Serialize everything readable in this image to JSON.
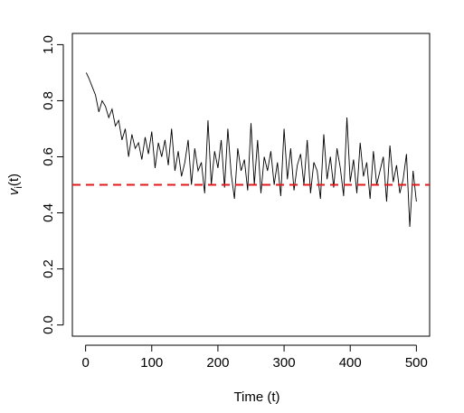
{
  "chart_data": {
    "type": "line",
    "xlabel": "Time (t)",
    "ylabel_main": "v",
    "ylabel_sub": "i",
    "ylabel_suffix": "(t)",
    "xlim": [
      -20,
      520
    ],
    "ylim": [
      -0.04,
      1.04
    ],
    "xticks": [
      0,
      100,
      200,
      300,
      400,
      500
    ],
    "xtick_labels": [
      "0",
      "100",
      "200",
      "300",
      "400",
      "500"
    ],
    "yticks": [
      0.0,
      0.2,
      0.4,
      0.6,
      0.8,
      1.0
    ],
    "ytick_labels": [
      "0.0",
      "0.2",
      "0.4",
      "0.6",
      "0.8",
      "1.0"
    ],
    "grid": false,
    "series": [
      {
        "color": "#000000",
        "x": [
          1,
          5,
          10,
          15,
          20,
          25,
          30,
          35,
          40,
          45,
          50,
          55,
          60,
          65,
          70,
          75,
          80,
          85,
          90,
          95,
          100,
          105,
          110,
          115,
          120,
          125,
          130,
          135,
          140,
          145,
          150,
          155,
          160,
          165,
          170,
          175,
          180,
          185,
          190,
          195,
          200,
          205,
          210,
          215,
          220,
          225,
          230,
          235,
          240,
          245,
          250,
          255,
          260,
          265,
          270,
          275,
          280,
          285,
          290,
          295,
          300,
          305,
          310,
          315,
          320,
          325,
          330,
          335,
          340,
          345,
          350,
          355,
          360,
          365,
          370,
          375,
          380,
          385,
          390,
          395,
          400,
          405,
          410,
          415,
          420,
          425,
          430,
          435,
          440,
          445,
          450,
          455,
          460,
          465,
          470,
          475,
          480,
          485,
          490,
          495,
          500
        ],
        "y": [
          0.9,
          0.88,
          0.85,
          0.82,
          0.76,
          0.8,
          0.78,
          0.74,
          0.77,
          0.71,
          0.73,
          0.66,
          0.7,
          0.6,
          0.68,
          0.63,
          0.65,
          0.59,
          0.67,
          0.61,
          0.69,
          0.56,
          0.65,
          0.6,
          0.66,
          0.57,
          0.7,
          0.55,
          0.62,
          0.53,
          0.58,
          0.66,
          0.5,
          0.63,
          0.55,
          0.58,
          0.47,
          0.73,
          0.5,
          0.62,
          0.56,
          0.66,
          0.49,
          0.7,
          0.54,
          0.45,
          0.63,
          0.55,
          0.59,
          0.48,
          0.72,
          0.5,
          0.66,
          0.47,
          0.6,
          0.55,
          0.62,
          0.5,
          0.58,
          0.46,
          0.7,
          0.52,
          0.63,
          0.48,
          0.57,
          0.61,
          0.5,
          0.66,
          0.47,
          0.58,
          0.55,
          0.45,
          0.68,
          0.52,
          0.6,
          0.49,
          0.63,
          0.56,
          0.46,
          0.74,
          0.51,
          0.59,
          0.47,
          0.65,
          0.53,
          0.58,
          0.45,
          0.62,
          0.5,
          0.55,
          0.6,
          0.44,
          0.64,
          0.51,
          0.57,
          0.47,
          0.52,
          0.61,
          0.35,
          0.55,
          0.44
        ]
      }
    ],
    "reference_line": {
      "y": 0.5,
      "color": "#e31a1c",
      "style": "dashed"
    }
  }
}
